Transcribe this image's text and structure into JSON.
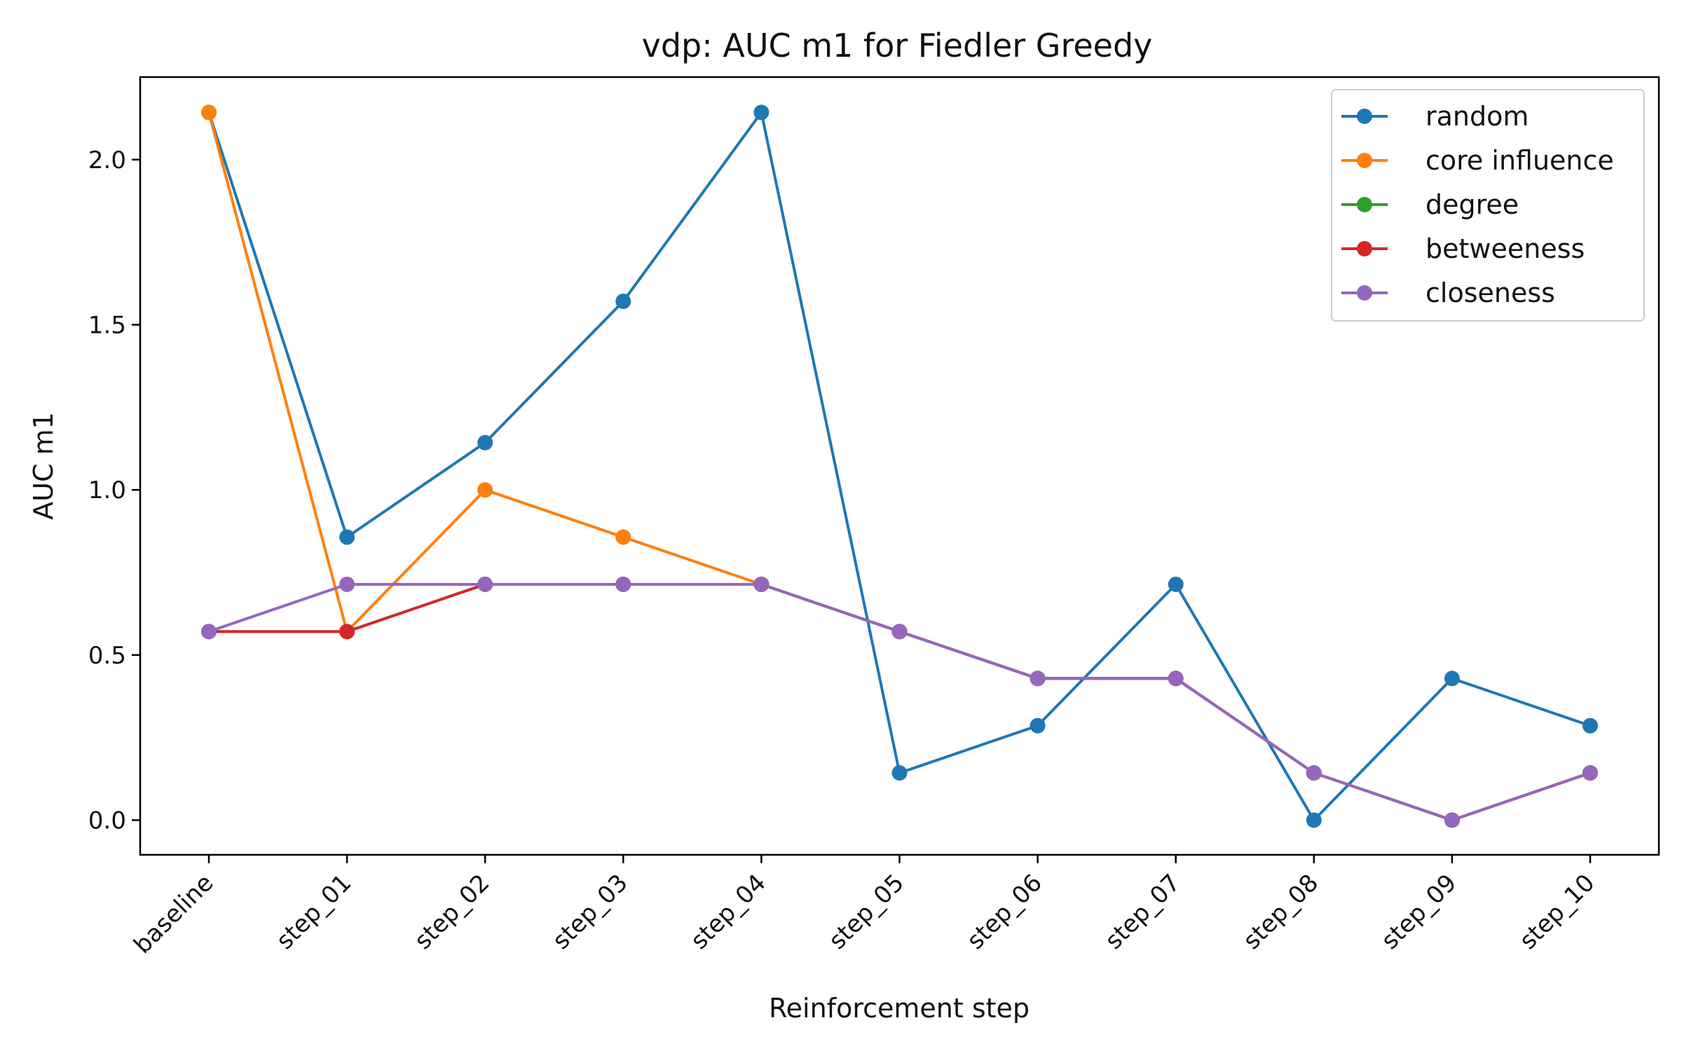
{
  "chart_data": {
    "type": "line",
    "title": "vdp: AUC m1 for Fiedler Greedy",
    "xlabel": "Reinforcement step",
    "ylabel": "AUC m1",
    "categories": [
      "baseline",
      "step_01",
      "step_02",
      "step_03",
      "step_04",
      "step_05",
      "step_06",
      "step_07",
      "step_08",
      "step_09",
      "step_10"
    ],
    "ylim": [
      -0.105,
      2.25
    ],
    "yticks": [
      0.0,
      0.5,
      1.0,
      1.5,
      2.0
    ],
    "ytick_labels": [
      "0.0",
      "0.5",
      "1.0",
      "1.5",
      "2.0"
    ],
    "grid": false,
    "legend_position": "top-right",
    "series": [
      {
        "name": "random",
        "color": "#1f77b4",
        "values": [
          2.143,
          0.857,
          1.143,
          1.571,
          2.143,
          0.143,
          0.286,
          0.714,
          0.0,
          0.429,
          0.286
        ]
      },
      {
        "name": "core influence",
        "color": "#ff7f0e",
        "values": [
          2.143,
          0.571,
          1.0,
          0.857,
          0.714,
          0.571,
          0.429,
          0.429,
          0.143,
          0.0,
          0.143
        ]
      },
      {
        "name": "degree",
        "color": "#2ca02c",
        "values": [
          0.571,
          0.571,
          0.714,
          0.714,
          0.714,
          0.571,
          0.429,
          0.429,
          0.143,
          0.0,
          0.143
        ]
      },
      {
        "name": "betweeness",
        "color": "#d62728",
        "values": [
          0.571,
          0.571,
          0.714,
          0.714,
          0.714,
          0.571,
          0.429,
          0.429,
          0.143,
          0.0,
          0.143
        ]
      },
      {
        "name": "closeness",
        "color": "#9467bd",
        "values": [
          0.571,
          0.714,
          0.714,
          0.714,
          0.714,
          0.571,
          0.429,
          0.429,
          0.143,
          0.0,
          0.143
        ]
      }
    ]
  }
}
